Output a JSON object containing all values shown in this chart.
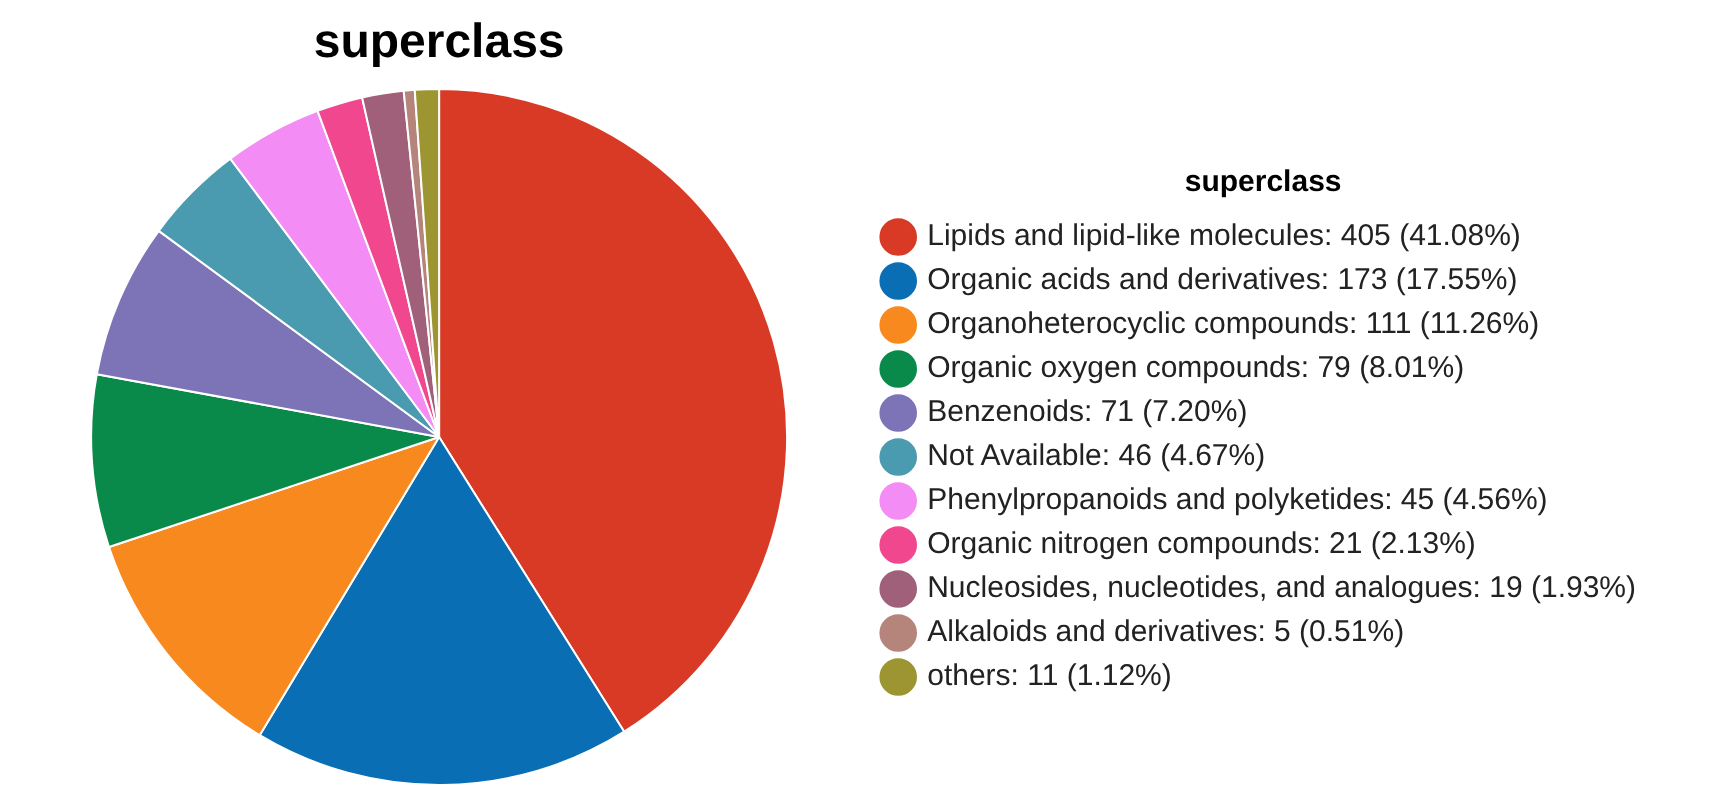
{
  "chart_data": {
    "type": "pie",
    "title": "superclass",
    "legend_title": "superclass",
    "legend": "right",
    "categories": [
      "Lipids and lipid-like molecules",
      "Organic acids and derivatives",
      "Organoheterocyclic compounds",
      "Organic oxygen compounds",
      "Benzenoids",
      "Not Available",
      "Phenylpropanoids and polyketides",
      "Organic nitrogen compounds",
      "Nucleosides, nucleotides, and analogues",
      "Alkaloids and derivatives",
      "others"
    ],
    "values": [
      405,
      173,
      111,
      79,
      71,
      46,
      45,
      21,
      19,
      5,
      11
    ],
    "value_labels": [
      "405 (41.08%)",
      "173 (17.55%)",
      "111 (11.26%)",
      "79 (8.01%)",
      "71 (7.20%)",
      "46 (4.67%)",
      "45 (4.56%)",
      "21 (2.13%)",
      "19 (1.93%)",
      "5 (0.51%)",
      "11 (1.12%)"
    ],
    "colors": [
      "#d93a26",
      "#0a6eb4",
      "#f7891e",
      "#0a8a4a",
      "#7d74b8",
      "#4a9bb0",
      "#f38cf5",
      "#f1478f",
      "#a0607a",
      "#b5847a",
      "#9c9531"
    ]
  }
}
